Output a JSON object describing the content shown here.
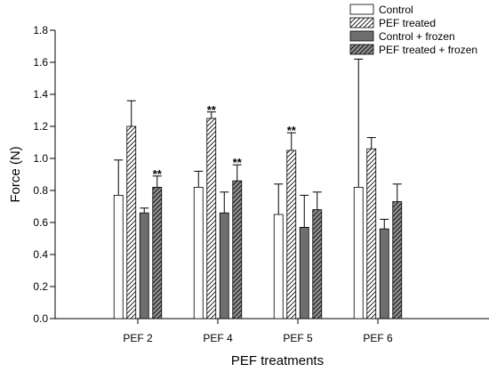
{
  "chart_data": {
    "type": "bar",
    "xlabel": "PEF treatments",
    "ylabel": "Force (N)",
    "ylim": [
      0,
      1.8
    ],
    "yticks": [
      "0.0",
      "0.2",
      "0.4",
      "0.6",
      "0.8",
      "1.0",
      "1.2",
      "1.4",
      "1.6",
      "1.8"
    ],
    "categories": [
      "PEF 2",
      "PEF 4",
      "PEF 5",
      "PEF 6"
    ],
    "grid": false,
    "legend_position": "top-right",
    "series": [
      {
        "name": "Control",
        "style": "white",
        "values": [
          0.77,
          0.82,
          0.65,
          0.82
        ],
        "error": [
          0.22,
          0.1,
          0.19,
          0.8
        ]
      },
      {
        "name": "PEF treated",
        "style": "hatched-white",
        "values": [
          1.2,
          1.25,
          1.05,
          1.06
        ],
        "error": [
          0.16,
          0.04,
          0.11,
          0.07
        ]
      },
      {
        "name": "Control + frozen",
        "style": "dark-gray",
        "values": [
          0.66,
          0.66,
          0.57,
          0.56
        ],
        "error": [
          0.03,
          0.13,
          0.2,
          0.06
        ]
      },
      {
        "name": "PEF treated + frozen",
        "style": "hatched-gray",
        "values": [
          0.82,
          0.86,
          0.68,
          0.73
        ],
        "error": [
          0.07,
          0.1,
          0.11,
          0.11
        ]
      }
    ],
    "annotations": [
      {
        "text": "**",
        "category": "PEF 2",
        "series": "PEF treated + frozen"
      },
      {
        "text": "**",
        "category": "PEF 4",
        "series": "PEF treated"
      },
      {
        "text": "**",
        "category": "PEF 4",
        "series": "PEF treated + frozen"
      },
      {
        "text": "**",
        "category": "PEF 5",
        "series": "PEF treated"
      }
    ],
    "colors": {
      "white_fill": "#ffffff",
      "dark_fill": "#6e6e6e",
      "hatched_gray_fill": "#8c8c8c",
      "stroke": "#000000"
    }
  }
}
